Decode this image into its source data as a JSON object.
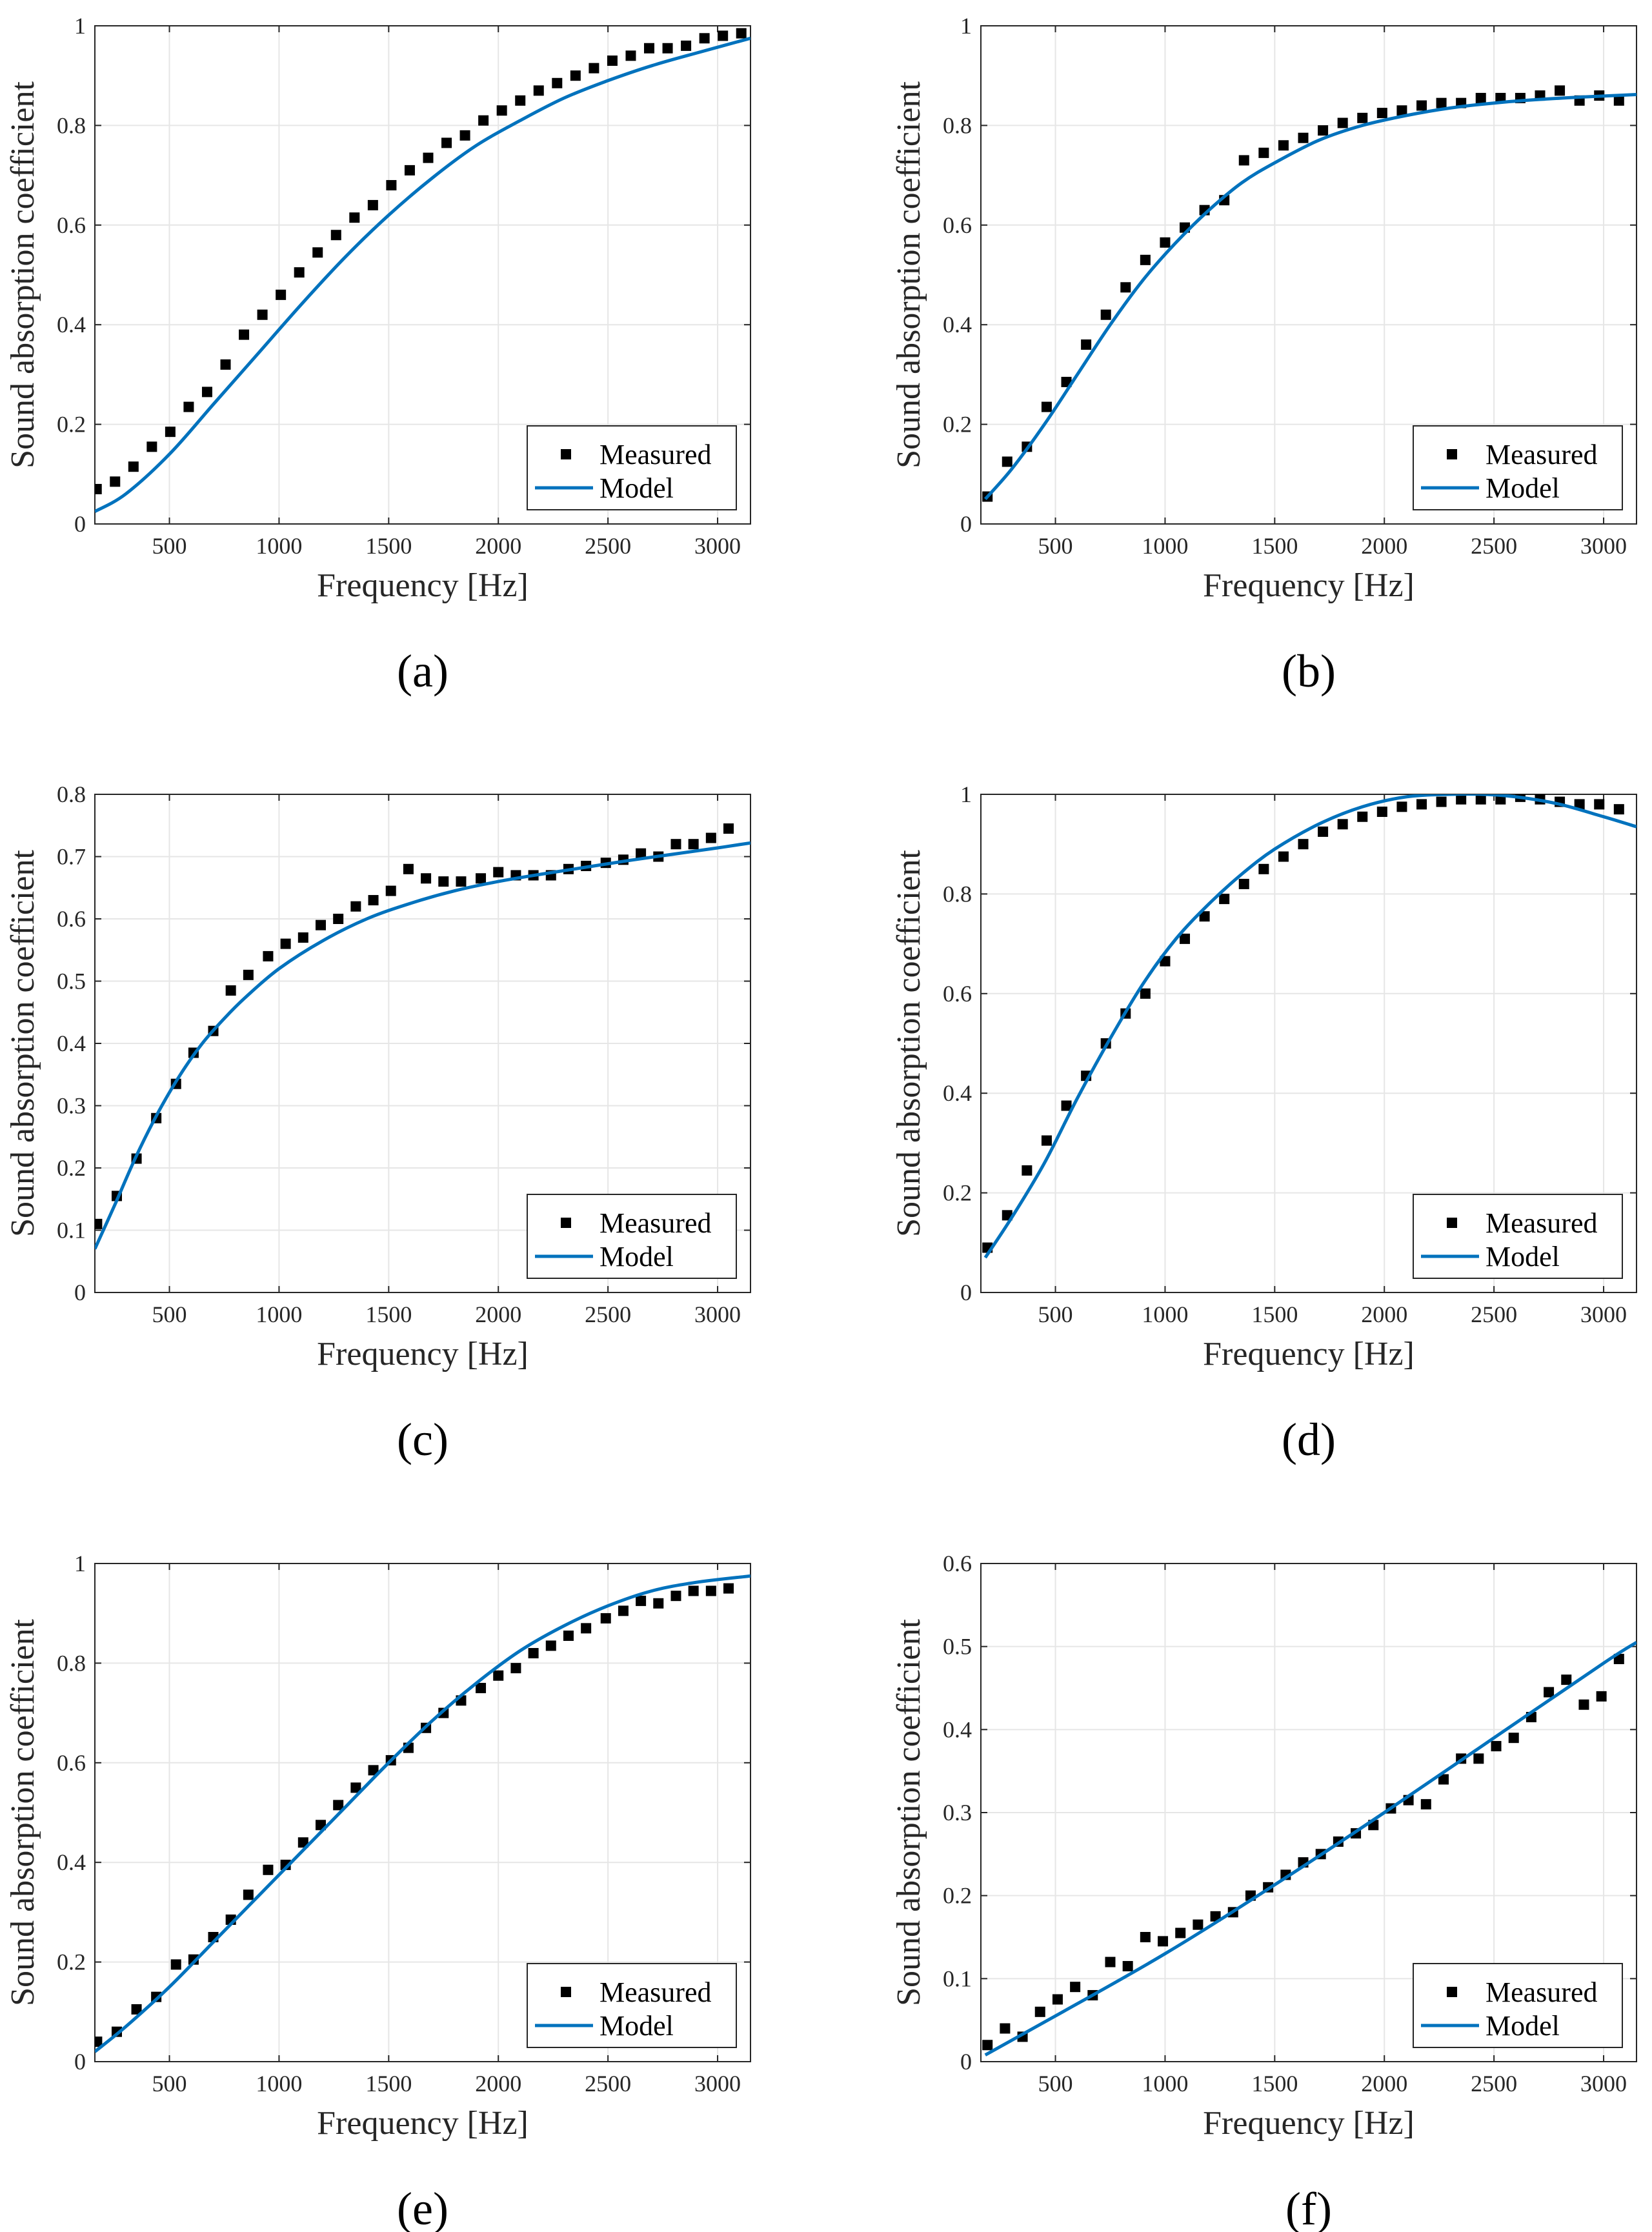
{
  "colors": {
    "model": "#0072BD",
    "measured": "#000000",
    "grid": "#e6e6e6",
    "axis": "#262626"
  },
  "chart_data": [
    {
      "panel": "(a)",
      "type": "line",
      "xlabel": "Frequency [Hz]",
      "ylabel": "Sound absorption coefficient",
      "xlim": [
        160,
        3150
      ],
      "ylim": [
        0,
        1
      ],
      "xticks": [
        500,
        1000,
        1500,
        2000,
        2500,
        3000
      ],
      "yticks": [
        0,
        0.2,
        0.4,
        0.6,
        0.8,
        1
      ],
      "ytick_labels": [
        "0",
        "0.2",
        "0.4",
        "0.6",
        "0.8",
        "1"
      ],
      "grid": true,
      "legend": "bottom-right",
      "series": [
        {
          "name": "Measured",
          "marker": "square",
          "x": [
            168,
            252,
            336,
            420,
            504,
            588,
            672,
            756,
            840,
            924,
            1008,
            1092,
            1176,
            1260,
            1344,
            1428,
            1512,
            1596,
            1680,
            1764,
            1848,
            1932,
            2016,
            2100,
            2184,
            2268,
            2352,
            2436,
            2520,
            2604,
            2688,
            2772,
            2856,
            2940,
            3024,
            3108
          ],
          "y": [
            0.07,
            0.085,
            0.115,
            0.155,
            0.185,
            0.235,
            0.265,
            0.32,
            0.38,
            0.42,
            0.46,
            0.505,
            0.545,
            0.58,
            0.615,
            0.64,
            0.68,
            0.71,
            0.735,
            0.765,
            0.78,
            0.81,
            0.83,
            0.85,
            0.87,
            0.885,
            0.9,
            0.915,
            0.93,
            0.94,
            0.955,
            0.955,
            0.96,
            0.975,
            0.98,
            0.985
          ]
        },
        {
          "name": "Model",
          "line": true,
          "x": [
            160,
            300,
            500,
            700,
            900,
            1100,
            1300,
            1500,
            1700,
            1900,
            2100,
            2300,
            2500,
            2700,
            2900,
            3150
          ],
          "y": [
            0.025,
            0.06,
            0.14,
            0.24,
            0.34,
            0.44,
            0.535,
            0.62,
            0.695,
            0.76,
            0.81,
            0.855,
            0.89,
            0.92,
            0.945,
            0.975
          ]
        }
      ]
    },
    {
      "panel": "(b)",
      "type": "line",
      "xlabel": "Frequency [Hz]",
      "ylabel": "Sound absorption coefficient",
      "xlim": [
        160,
        3150
      ],
      "ylim": [
        0,
        1
      ],
      "xticks": [
        500,
        1000,
        1500,
        2000,
        2500,
        3000
      ],
      "yticks": [
        0,
        0.2,
        0.4,
        0.6,
        0.8,
        1
      ],
      "ytick_labels": [
        "0",
        "0.2",
        "0.4",
        "0.6",
        "0.8",
        "1"
      ],
      "grid": true,
      "legend": "bottom-right",
      "series": [
        {
          "name": "Measured",
          "marker": "square",
          "x": [
            190,
            280,
            370,
            460,
            550,
            640,
            730,
            820,
            910,
            1000,
            1090,
            1180,
            1270,
            1360,
            1450,
            1540,
            1630,
            1720,
            1810,
            1900,
            1990,
            2080,
            2170,
            2260,
            2350,
            2440,
            2530,
            2620,
            2710,
            2800,
            2890,
            2980,
            3070
          ],
          "y": [
            0.055,
            0.125,
            0.155,
            0.235,
            0.285,
            0.36,
            0.42,
            0.475,
            0.53,
            0.565,
            0.595,
            0.63,
            0.65,
            0.73,
            0.745,
            0.76,
            0.775,
            0.79,
            0.805,
            0.815,
            0.825,
            0.83,
            0.84,
            0.845,
            0.845,
            0.855,
            0.855,
            0.855,
            0.86,
            0.87,
            0.85,
            0.86,
            0.85
          ]
        },
        {
          "name": "Model",
          "line": true,
          "x": [
            180,
            300,
            450,
            600,
            750,
            900,
            1050,
            1200,
            1350,
            1500,
            1700,
            1900,
            2100,
            2300,
            2500,
            2700,
            2900,
            3150
          ],
          "y": [
            0.05,
            0.11,
            0.2,
            0.3,
            0.4,
            0.49,
            0.565,
            0.63,
            0.685,
            0.725,
            0.77,
            0.8,
            0.82,
            0.835,
            0.845,
            0.852,
            0.857,
            0.862
          ]
        }
      ]
    },
    {
      "panel": "(c)",
      "type": "line",
      "xlabel": "Frequency [Hz]",
      "ylabel": "Sound absorption coefficient",
      "xlim": [
        160,
        3150
      ],
      "ylim": [
        0,
        0.8
      ],
      "xticks": [
        500,
        1000,
        1500,
        2000,
        2500,
        3000
      ],
      "yticks": [
        0,
        0.1,
        0.2,
        0.3,
        0.4,
        0.5,
        0.6,
        0.7,
        0.8
      ],
      "ytick_labels": [
        "0",
        "0.1",
        "0.2",
        "0.3",
        "0.4",
        "0.5",
        "0.6",
        "0.7",
        "0.8"
      ],
      "grid": true,
      "legend": "bottom-right",
      "series": [
        {
          "name": "Measured",
          "marker": "square",
          "x": [
            170,
            260,
            350,
            440,
            530,
            610,
            700,
            780,
            860,
            950,
            1030,
            1110,
            1190,
            1270,
            1350,
            1430,
            1510,
            1590,
            1670,
            1750,
            1830,
            1920,
            2000,
            2080,
            2160,
            2240,
            2320,
            2400,
            2490,
            2570,
            2650,
            2730,
            2810,
            2890,
            2970,
            3050
          ],
          "y": [
            0.11,
            0.155,
            0.215,
            0.28,
            0.335,
            0.385,
            0.42,
            0.485,
            0.51,
            0.54,
            0.56,
            0.57,
            0.59,
            0.6,
            0.62,
            0.63,
            0.645,
            0.68,
            0.665,
            0.66,
            0.66,
            0.665,
            0.675,
            0.67,
            0.67,
            0.67,
            0.68,
            0.685,
            0.69,
            0.695,
            0.705,
            0.7,
            0.72,
            0.72,
            0.73,
            0.745
          ]
        },
        {
          "name": "Model",
          "line": true,
          "x": [
            160,
            250,
            350,
            450,
            550,
            650,
            750,
            850,
            1000,
            1200,
            1400,
            1600,
            1800,
            2000,
            2200,
            2400,
            2600,
            2800,
            3000,
            3150
          ],
          "y": [
            0.07,
            0.14,
            0.22,
            0.29,
            0.35,
            0.4,
            0.44,
            0.475,
            0.52,
            0.565,
            0.6,
            0.625,
            0.645,
            0.66,
            0.672,
            0.683,
            0.694,
            0.704,
            0.714,
            0.722
          ]
        }
      ]
    },
    {
      "panel": "(d)",
      "type": "line",
      "xlabel": "Frequency [Hz]",
      "ylabel": "Sound absorption coefficient",
      "xlim": [
        160,
        3150
      ],
      "ylim": [
        0,
        1
      ],
      "xticks": [
        500,
        1000,
        1500,
        2000,
        2500,
        3000
      ],
      "yticks": [
        0,
        0.2,
        0.4,
        0.6,
        0.8,
        1
      ],
      "ytick_labels": [
        "0",
        "0.2",
        "0.4",
        "0.6",
        "0.8",
        "1"
      ],
      "grid": true,
      "legend": "bottom-right",
      "series": [
        {
          "name": "Measured",
          "marker": "square",
          "x": [
            190,
            280,
            370,
            460,
            550,
            640,
            730,
            820,
            910,
            1000,
            1090,
            1180,
            1270,
            1360,
            1450,
            1540,
            1630,
            1720,
            1810,
            1900,
            1990,
            2080,
            2170,
            2260,
            2350,
            2440,
            2530,
            2620,
            2710,
            2800,
            2890,
            2980,
            3070
          ],
          "y": [
            0.09,
            0.155,
            0.245,
            0.305,
            0.375,
            0.435,
            0.5,
            0.56,
            0.6,
            0.665,
            0.71,
            0.755,
            0.79,
            0.82,
            0.85,
            0.875,
            0.9,
            0.925,
            0.94,
            0.955,
            0.965,
            0.975,
            0.98,
            0.985,
            0.99,
            0.99,
            0.99,
            0.995,
            0.99,
            0.985,
            0.98,
            0.98,
            0.97
          ]
        },
        {
          "name": "Model",
          "line": true,
          "x": [
            180,
            300,
            450,
            600,
            750,
            900,
            1050,
            1200,
            1350,
            1500,
            1700,
            1900,
            2100,
            2300,
            2450,
            2600,
            2800,
            3000,
            3150
          ],
          "y": [
            0.07,
            0.15,
            0.26,
            0.39,
            0.51,
            0.62,
            0.71,
            0.78,
            0.84,
            0.89,
            0.94,
            0.975,
            0.995,
            1.0,
            1.0,
            0.995,
            0.98,
            0.955,
            0.935
          ]
        }
      ]
    },
    {
      "panel": "(e)",
      "type": "line",
      "xlabel": "Frequency [Hz]",
      "ylabel": "Sound absorption coefficient",
      "xlim": [
        160,
        3150
      ],
      "ylim": [
        0,
        1
      ],
      "xticks": [
        500,
        1000,
        1500,
        2000,
        2500,
        3000
      ],
      "yticks": [
        0,
        0.2,
        0.4,
        0.6,
        0.8,
        1
      ],
      "ytick_labels": [
        "0",
        "0.2",
        "0.4",
        "0.6",
        "0.8",
        "1"
      ],
      "grid": true,
      "legend": "bottom-right",
      "series": [
        {
          "name": "Measured",
          "marker": "square",
          "x": [
            170,
            260,
            350,
            440,
            530,
            610,
            700,
            780,
            860,
            950,
            1030,
            1110,
            1190,
            1270,
            1350,
            1430,
            1510,
            1590,
            1670,
            1750,
            1830,
            1920,
            2000,
            2080,
            2160,
            2240,
            2320,
            2400,
            2490,
            2570,
            2650,
            2730,
            2810,
            2890,
            2970,
            3050
          ],
          "y": [
            0.04,
            0.06,
            0.105,
            0.13,
            0.195,
            0.205,
            0.25,
            0.285,
            0.335,
            0.385,
            0.395,
            0.44,
            0.475,
            0.515,
            0.55,
            0.585,
            0.605,
            0.63,
            0.67,
            0.7,
            0.725,
            0.75,
            0.775,
            0.79,
            0.82,
            0.835,
            0.855,
            0.87,
            0.89,
            0.905,
            0.925,
            0.92,
            0.935,
            0.945,
            0.945,
            0.95
          ]
        },
        {
          "name": "Model",
          "line": true,
          "x": [
            160,
            300,
            500,
            700,
            900,
            1100,
            1300,
            1500,
            1700,
            1900,
            2100,
            2300,
            2500,
            2700,
            2900,
            3150
          ],
          "y": [
            0.02,
            0.07,
            0.15,
            0.24,
            0.33,
            0.42,
            0.51,
            0.6,
            0.685,
            0.76,
            0.825,
            0.875,
            0.915,
            0.945,
            0.962,
            0.975
          ]
        }
      ]
    },
    {
      "panel": "(f)",
      "type": "line",
      "xlabel": "Frequency [Hz]",
      "ylabel": "Sound absorption coefficient",
      "xlim": [
        160,
        3150
      ],
      "ylim": [
        0,
        0.6
      ],
      "xticks": [
        500,
        1000,
        1500,
        2000,
        2500,
        3000
      ],
      "yticks": [
        0,
        0.1,
        0.2,
        0.3,
        0.4,
        0.5,
        0.6
      ],
      "ytick_labels": [
        "0",
        "0.1",
        "0.2",
        "0.3",
        "0.4",
        "0.5",
        "0.6"
      ],
      "grid": true,
      "legend": "bottom-right",
      "series": [
        {
          "name": "Measured",
          "marker": "square",
          "x": [
            190,
            270,
            350,
            430,
            510,
            590,
            670,
            750,
            830,
            910,
            990,
            1070,
            1150,
            1230,
            1310,
            1390,
            1470,
            1550,
            1630,
            1710,
            1790,
            1870,
            1950,
            2030,
            2110,
            2190,
            2270,
            2350,
            2430,
            2510,
            2590,
            2670,
            2750,
            2830,
            2910,
            2990,
            3070
          ],
          "y": [
            0.02,
            0.04,
            0.03,
            0.06,
            0.075,
            0.09,
            0.08,
            0.12,
            0.115,
            0.15,
            0.145,
            0.155,
            0.165,
            0.175,
            0.18,
            0.2,
            0.21,
            0.225,
            0.24,
            0.25,
            0.265,
            0.275,
            0.285,
            0.305,
            0.315,
            0.31,
            0.34,
            0.365,
            0.365,
            0.38,
            0.39,
            0.415,
            0.445,
            0.46,
            0.43,
            0.44,
            0.485
          ]
        },
        {
          "name": "Model",
          "line": true,
          "x": [
            180,
            500,
            1000,
            1500,
            2000,
            2500,
            3000,
            3150
          ],
          "y": [
            0.008,
            0.055,
            0.13,
            0.213,
            0.3,
            0.39,
            0.48,
            0.505
          ]
        }
      ]
    }
  ],
  "figure": {
    "panel_labels": [
      "(a)",
      "(b)",
      "(c)",
      "(d)",
      "(e)",
      "(f)"
    ]
  }
}
